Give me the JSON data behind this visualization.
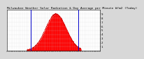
{
  "title": "Milwaukee Weather Solar Radiation & Day Average per Minute W/m2 (Today)",
  "bg_color": "#d8d8d8",
  "plot_bg_color": "#ffffff",
  "fill_color": "#ff0000",
  "line_color": "#cc0000",
  "blue_line_color": "#0000cc",
  "dashed_line_color": "#888888",
  "num_points": 1440,
  "peak_minute": 760,
  "peak_value": 900,
  "sigma": 160,
  "daylight_start": 310,
  "daylight_end": 1150,
  "blue_line1_minute": 370,
  "blue_line2_minute": 1110,
  "dashed_line_minute": 365,
  "ylim": [
    0,
    1000
  ],
  "xlim": [
    0,
    1440
  ],
  "ytick_values": [
    1,
    2,
    3,
    4,
    5,
    6,
    7,
    8,
    9
  ],
  "ytick_labels": [
    "1",
    "2",
    "3",
    "4",
    "5",
    "6",
    "7",
    "8",
    "9"
  ],
  "title_fontsize": 3.2,
  "tick_fontsize": 2.8,
  "grid_color": "#cccccc"
}
